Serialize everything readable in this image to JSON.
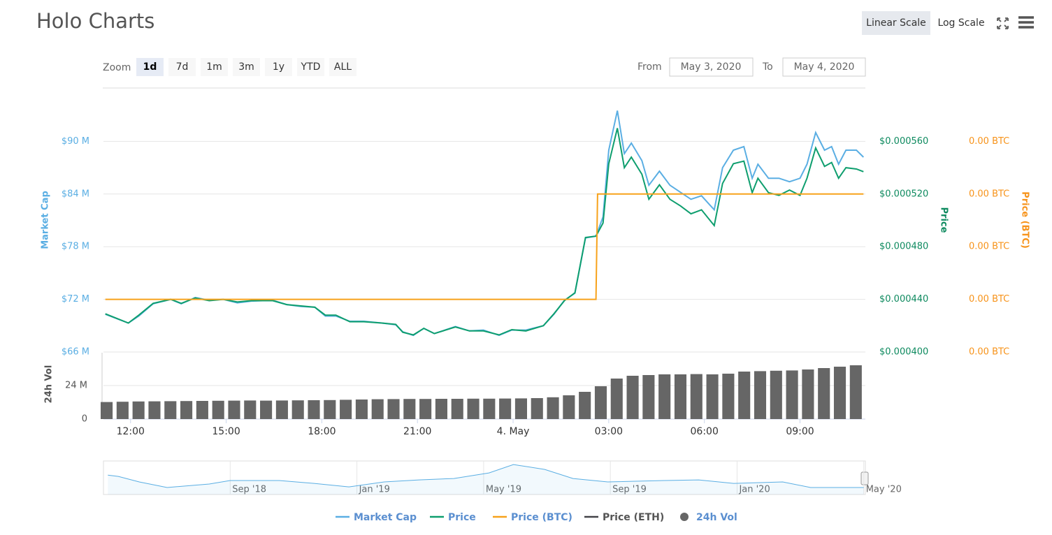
{
  "header": {
    "title": "Holo Charts",
    "scale_buttons": [
      "Linear Scale",
      "Log Scale"
    ],
    "active_scale": 0
  },
  "controls": {
    "zoom_label": "Zoom",
    "zoom_buttons": [
      "1d",
      "7d",
      "1m",
      "3m",
      "1y",
      "YTD",
      "ALL"
    ],
    "active_zoom": 0,
    "from_label": "From",
    "from": "May 3, 2020",
    "to_label": "To",
    "to": "May 4, 2020"
  },
  "chart_data": {
    "type": "line",
    "ylabel": "Market Cap",
    "y2label": "Price",
    "y3label": "Price (BTC)",
    "xlim": [
      11.15,
      35.05
    ],
    "xticks": [
      {
        "value": 12,
        "label": "12:00"
      },
      {
        "value": 15,
        "label": "15:00"
      },
      {
        "value": 18,
        "label": "18:00"
      },
      {
        "value": 21,
        "label": "21:00"
      },
      {
        "value": 24,
        "label": "4. May"
      },
      {
        "value": 27,
        "label": "03:00"
      },
      {
        "value": 30,
        "label": "06:00"
      },
      {
        "value": 33,
        "label": "09:00"
      }
    ],
    "ylim": [
      66,
      96
    ],
    "yticks": [
      {
        "value": 66,
        "label": "$66 M"
      },
      {
        "value": 72,
        "label": "$72 M"
      },
      {
        "value": 78,
        "label": "$78 M"
      },
      {
        "value": 84,
        "label": "$84 M"
      },
      {
        "value": 90,
        "label": "$90 M"
      }
    ],
    "y2lim": [
      0.0004,
      0.0006
    ],
    "y2ticks": [
      {
        "value": 0.0004,
        "label": "$0.000400"
      },
      {
        "value": 0.00044,
        "label": "$0.000440"
      },
      {
        "value": 0.00048,
        "label": "$0.000480"
      },
      {
        "value": 0.00052,
        "label": "$0.000520"
      },
      {
        "value": 0.00056,
        "label": "$0.000560"
      }
    ],
    "y3lim": [
      4e-05,
      6e-05
    ],
    "y3ticks": [
      {
        "value": 4e-05,
        "label": "0.00 BTC"
      },
      {
        "value": 4.4e-05,
        "label": "0.00 BTC"
      },
      {
        "value": 4.8e-05,
        "label": "0.00 BTC"
      },
      {
        "value": 5.2e-05,
        "label": "0.00 BTC"
      },
      {
        "value": 5.6e-05,
        "label": "0.00 BTC"
      }
    ],
    "grid": true,
    "x": [
      11.21,
      11.93,
      12.26,
      12.71,
      13.26,
      13.59,
      14.03,
      14.47,
      14.91,
      15.35,
      15.79,
      16.46,
      16.9,
      17.34,
      17.78,
      18.11,
      18.44,
      18.88,
      19.32,
      19.88,
      20.32,
      20.54,
      20.87,
      21.2,
      21.53,
      22.19,
      22.63,
      23.07,
      23.56,
      23.96,
      24.4,
      24.95,
      25.28,
      25.61,
      25.94,
      26.27,
      26.6,
      26.82,
      27.0,
      27.27,
      27.49,
      27.71,
      28.04,
      28.26,
      28.59,
      28.92,
      29.25,
      29.58,
      29.91,
      30.31,
      30.57,
      30.91,
      31.24,
      31.5,
      31.68,
      32.01,
      32.34,
      32.67,
      33.0,
      33.22,
      33.49,
      33.77,
      33.99,
      34.21,
      34.44,
      34.77,
      34.99
    ],
    "series": [
      {
        "name": "Market Cap",
        "color": "#5aaee3",
        "axis": "y",
        "values": [
          70.3,
          69.3,
          70.1,
          71.5,
          72.0,
          71.5,
          72.2,
          71.9,
          72.0,
          71.6,
          71.8,
          71.9,
          71.4,
          71.2,
          71.1,
          70.1,
          70.1,
          69.5,
          69.5,
          69.3,
          69.1,
          68.3,
          67.9,
          68.7,
          68.1,
          68.9,
          68.4,
          68.5,
          67.9,
          68.5,
          68.5,
          69.0,
          70.3,
          71.9,
          72.7,
          79.0,
          79.2,
          81.4,
          89.0,
          93.5,
          88.6,
          89.8,
          87.8,
          85.0,
          86.6,
          85.0,
          84.2,
          83.4,
          83.8,
          82.2,
          87.0,
          89.0,
          89.4,
          85.8,
          87.4,
          85.8,
          85.8,
          85.4,
          85.8,
          87.4,
          91.0,
          89.0,
          89.4,
          87.4,
          89.0,
          89.0,
          88.2
        ]
      },
      {
        "name": "Price",
        "color": "#0e9e6e",
        "axis": "y2",
        "values": [
          0.000429,
          0.000422,
          0.000428,
          0.000437,
          0.00044,
          0.000437,
          0.000441,
          0.000439,
          0.00044,
          0.000438,
          0.000439,
          0.000439,
          0.000436,
          0.000435,
          0.000434,
          0.000428,
          0.000428,
          0.000423,
          0.000423,
          0.000422,
          0.000421,
          0.000415,
          0.000413,
          0.000418,
          0.000414,
          0.000419,
          0.000416,
          0.000416,
          0.000413,
          0.000417,
          0.000416,
          0.00042,
          0.000429,
          0.000439,
          0.000445,
          0.000487,
          0.000488,
          0.000498,
          0.000543,
          0.00057,
          0.00054,
          0.000548,
          0.000535,
          0.000516,
          0.000527,
          0.000516,
          0.000511,
          0.000505,
          0.000508,
          0.000496,
          0.000528,
          0.000543,
          0.000545,
          0.000521,
          0.000532,
          0.000521,
          0.000519,
          0.000523,
          0.000519,
          0.000532,
          0.000555,
          0.000541,
          0.000544,
          0.000532,
          0.00054,
          0.000539,
          0.000537
        ]
      },
      {
        "name": "Price (BTC)",
        "color": "#f7a21b",
        "axis": "y3",
        "x": [
          11.21,
          26.6,
          26.65,
          34.99
        ],
        "values": [
          4.4e-05,
          4.4e-05,
          5.2e-05,
          5.2e-05
        ]
      },
      {
        "name": "Price (ETH)",
        "color": "#434348",
        "visible": false
      },
      {
        "name": "24h Vol",
        "color": "#666666",
        "type": "bar",
        "axis": "volume",
        "x": [
          11.25,
          11.75,
          12.25,
          12.75,
          13.25,
          13.75,
          14.25,
          14.75,
          15.25,
          15.75,
          16.25,
          16.75,
          17.25,
          17.75,
          18.25,
          18.75,
          19.25,
          19.75,
          20.25,
          20.75,
          21.25,
          21.75,
          22.25,
          22.75,
          23.25,
          23.75,
          24.25,
          24.75,
          25.25,
          25.75,
          26.25,
          26.75,
          27.25,
          27.75,
          28.25,
          28.75,
          29.25,
          29.75,
          30.25,
          30.75,
          31.25,
          31.75,
          32.25,
          32.75,
          33.25,
          33.75,
          34.25,
          34.75
        ],
        "values": [
          12.2,
          12.4,
          12.6,
          12.7,
          12.8,
          12.9,
          13.0,
          13.1,
          13.2,
          13.3,
          13.2,
          13.3,
          13.4,
          13.5,
          13.6,
          13.8,
          14.0,
          14.2,
          14.3,
          14.4,
          14.4,
          14.5,
          14.5,
          14.6,
          14.6,
          14.7,
          14.8,
          15.0,
          15.6,
          17.0,
          19.5,
          23.5,
          29.0,
          31.0,
          31.5,
          32.0,
          32.0,
          32.2,
          32.0,
          32.5,
          34.0,
          34.3,
          34.6,
          34.8,
          35.5,
          36.5,
          37.5,
          38.5
        ]
      }
    ],
    "volume_axis": {
      "label": "24h Vol",
      "lim": [
        0,
        47.5
      ],
      "ticks": [
        0,
        {
          "value": 24,
          "label": "24 M"
        }
      ]
    },
    "navigator": {
      "color": "#5aaee3",
      "xlim": [
        4,
        28.05
      ],
      "ylim": [
        0,
        500
      ],
      "xticks": [
        {
          "value": 8,
          "label": "Sep '18"
        },
        {
          "value": 12,
          "label": "Jan '19"
        },
        {
          "value": 16,
          "label": "May '19"
        },
        {
          "value": 20,
          "label": "Sep '19"
        },
        {
          "value": 24,
          "label": "Jan '20"
        },
        {
          "value": 28,
          "label": "May '20"
        }
      ],
      "x": [
        4.14,
        4.47,
        5.13,
        6.01,
        7.34,
        8.0,
        9.55,
        10.65,
        11.75,
        12.86,
        13.96,
        15.06,
        16.17,
        16.94,
        17.93,
        18.82,
        19.92,
        21.69,
        22.79,
        23.89,
        25.44,
        26.32,
        28.0
      ],
      "values": [
        290,
        270,
        187,
        104,
        156,
        208,
        208,
        166,
        114,
        187,
        218,
        239,
        322,
        447,
        374,
        239,
        187,
        208,
        218,
        166,
        187,
        104,
        104
      ]
    }
  }
}
